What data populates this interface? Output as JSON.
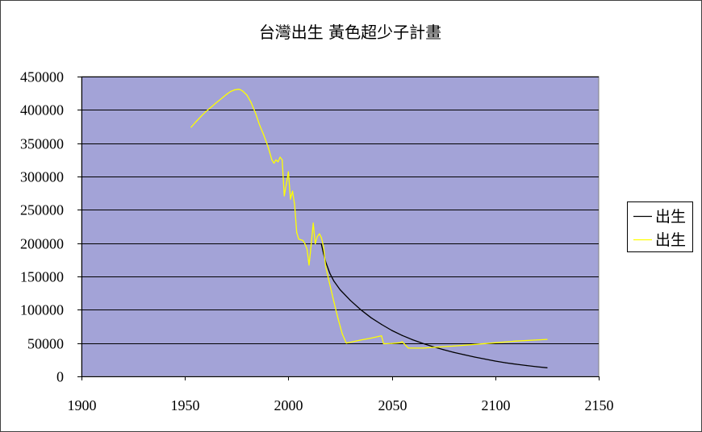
{
  "chart_data": {
    "type": "line",
    "title": "台灣出生 黃色超少子計畫",
    "xlabel": "",
    "ylabel": "",
    "xlim": [
      1900,
      2150
    ],
    "ylim": [
      0,
      450000
    ],
    "xticks": [
      1900,
      1950,
      2000,
      2050,
      2100,
      2150
    ],
    "yticks": [
      0,
      50000,
      100000,
      150000,
      200000,
      250000,
      300000,
      350000,
      400000,
      450000
    ],
    "grid": true,
    "legend": "right",
    "plot_background": "#A3A3D7",
    "series": [
      {
        "name": "出生",
        "color": "#000000",
        "x": [
          2016,
          2017,
          2018,
          2020,
          2022,
          2025,
          2030,
          2035,
          2040,
          2045,
          2050,
          2055,
          2060,
          2065,
          2070,
          2075,
          2080,
          2085,
          2090,
          2095,
          2100,
          2105,
          2110,
          2115,
          2120,
          2125
        ],
        "y": [
          198000,
          184000,
          172000,
          155000,
          143000,
          130000,
          114000,
          100000,
          88000,
          78000,
          69000,
          61500,
          55000,
          49500,
          44500,
          40000,
          36000,
          32500,
          29000,
          26000,
          23000,
          20500,
          18300,
          16300,
          14500,
          13000
        ]
      },
      {
        "name": "出生",
        "color": "#FFFF00",
        "x": [
          1953,
          1955,
          1958,
          1960,
          1963,
          1965,
          1968,
          1970,
          1972,
          1974,
          1976,
          1977,
          1978,
          1980,
          1982,
          1984,
          1986,
          1988,
          1990,
          1991,
          1992,
          1993,
          1994,
          1995,
          1996,
          1997,
          1998,
          1999,
          2000,
          2001,
          2002,
          2003,
          2004,
          2005,
          2006,
          2007,
          2008,
          2009,
          2010,
          2011,
          2012,
          2013,
          2014,
          2015,
          2016,
          2017,
          2018,
          2020,
          2022,
          2024,
          2026,
          2028,
          2035,
          2040,
          2045,
          2046,
          2050,
          2054,
          2055,
          2058,
          2065,
          2070,
          2080,
          2090,
          2100,
          2110,
          2125
        ],
        "y": [
          374000,
          381000,
          391000,
          397000,
          405000,
          410500,
          418000,
          423000,
          427500,
          430000,
          431000,
          430000,
          428000,
          422000,
          411000,
          396000,
          378000,
          363000,
          346000,
          336000,
          325000,
          320000,
          325000,
          322000,
          329000,
          325000,
          271000,
          288000,
          307000,
          266000,
          278000,
          258000,
          216000,
          206000,
          205000,
          204000,
          199000,
          191000,
          167000,
          197000,
          230000,
          199000,
          210000,
          214000,
          208000,
          194000,
          165000,
          138000,
          112000,
          87000,
          64000,
          50000,
          54500,
          57500,
          61000,
          49000,
          49500,
          50500,
          52000,
          42500,
          42500,
          43500,
          45500,
          48000,
          50500,
          53000,
          55500
        ]
      }
    ]
  }
}
